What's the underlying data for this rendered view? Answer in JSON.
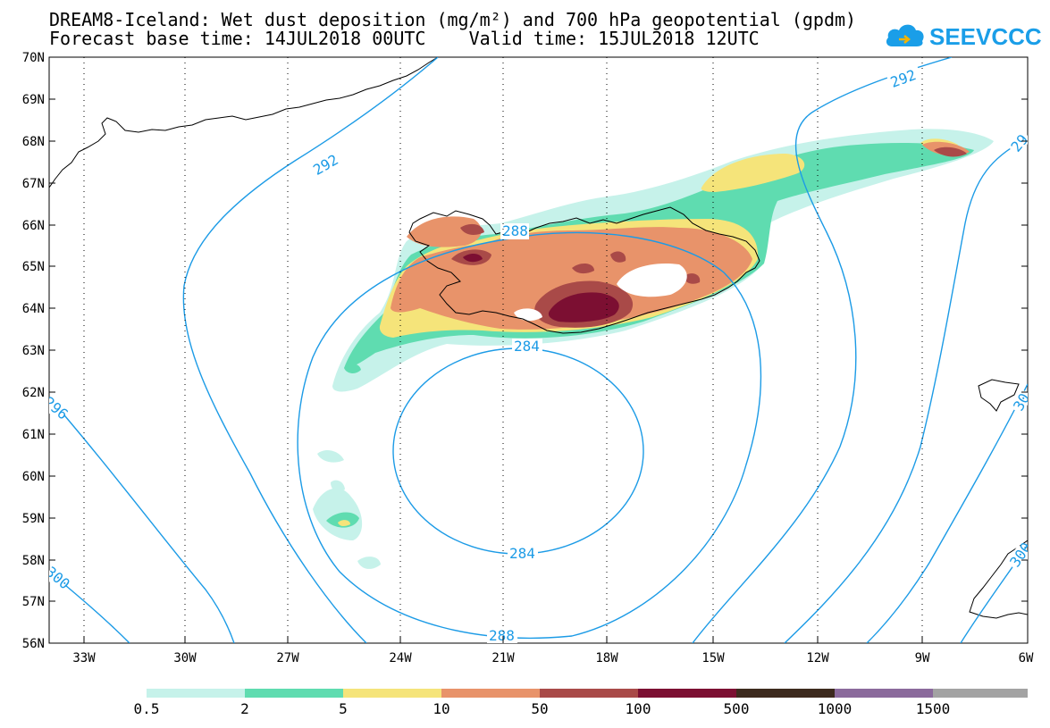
{
  "title": {
    "line1": "DREAM8-Iceland: Wet dust deposition (mg/m²) and 700 hPa geopotential (gpdm)",
    "line2": "Forecast base time: 14JUL2018 00UTC    Valid time: 15JUL2018 12UTC"
  },
  "logo": {
    "text": "SEEVCCC",
    "icon": "cloud-icon",
    "color": "#1a9ee8"
  },
  "axes": {
    "lat_labels": [
      "70N",
      "69N",
      "68N",
      "67N",
      "66N",
      "65N",
      "64N",
      "63N",
      "62N",
      "61N",
      "60N",
      "59N",
      "58N",
      "57N",
      "56N"
    ],
    "lon_labels": [
      "33W",
      "30W",
      "27W",
      "24W",
      "21W",
      "18W",
      "15W",
      "12W",
      "9W",
      "6W"
    ]
  },
  "contours": {
    "color": "#1c9be6",
    "labels": [
      "292",
      "288",
      "284",
      "284",
      "288",
      "292",
      "296",
      "300",
      "300",
      "29",
      "30"
    ]
  },
  "colorbar": {
    "levels": [
      "0.5",
      "2",
      "5",
      "10",
      "50",
      "100",
      "500",
      "1000",
      "1500"
    ],
    "colors": [
      "#c6f2ea",
      "#5fdcb0",
      "#f5e47a",
      "#e8936a",
      "#a94a48",
      "#7c0f32",
      "#3d2a1e",
      "#8b6a9c",
      "#a3a3a3"
    ]
  }
}
